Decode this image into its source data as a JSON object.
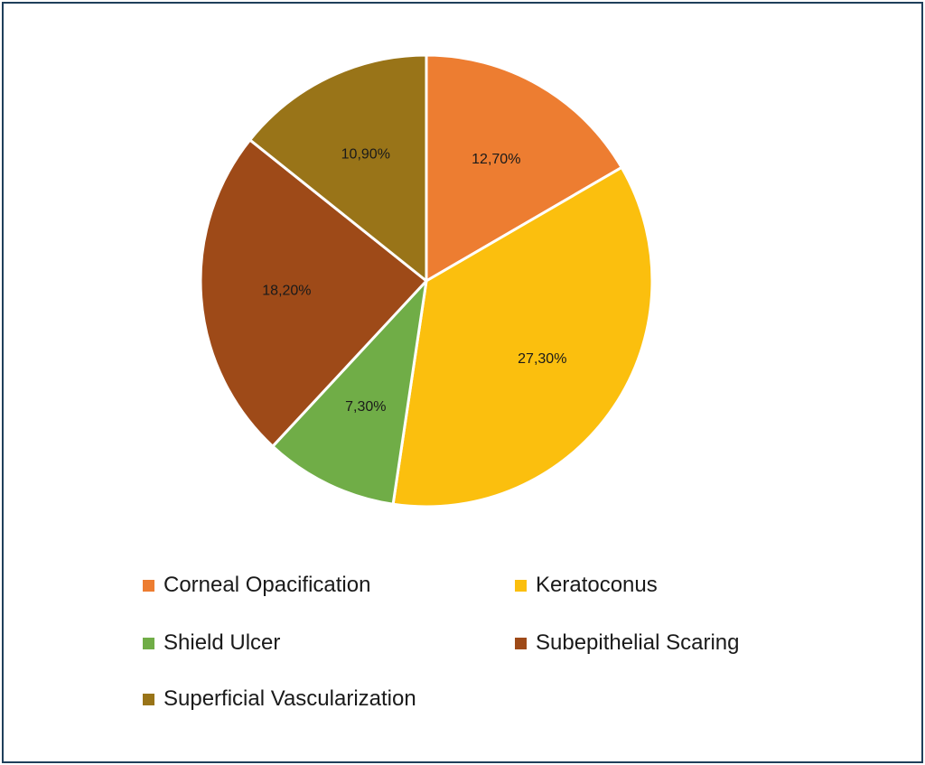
{
  "chart_data": {
    "type": "pie",
    "start_angle_deg": 0,
    "direction": "clockwise",
    "slices": [
      {
        "name": "Corneal Opacification",
        "value": 12.7,
        "label": "12,70%",
        "color": "#ED7D31"
      },
      {
        "name": "Keratoconus",
        "value": 27.3,
        "label": "27,30%",
        "color": "#FBBF0E"
      },
      {
        "name": "Shield Ulcer",
        "value": 7.3,
        "label": "7,30%",
        "color": "#70AD47"
      },
      {
        "name": "Subepithelial Scaring",
        "value": 18.2,
        "label": "18,20%",
        "color": "#9E4A18"
      },
      {
        "name": "Superficial Vascularization",
        "value": 10.9,
        "label": "10,90%",
        "color": "#997418"
      }
    ],
    "legend_position": "bottom",
    "legend": [
      "Corneal Opacification",
      "Keratoconus",
      "Shield Ulcer",
      "Subepithelial Scaring",
      "Superficial Vascularization"
    ]
  },
  "frame_border_color": "#1f3f5b"
}
